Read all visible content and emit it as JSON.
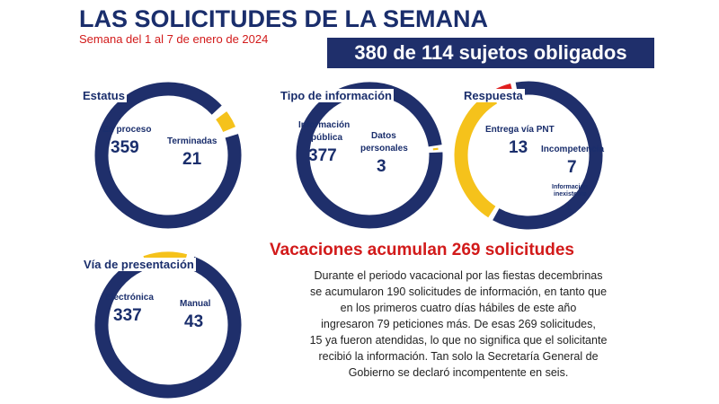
{
  "header": {
    "title": "LAS SOLICITUDES DE LA SEMANA",
    "subtitle": "Semana del 1 al 7 de enero de 2024",
    "banner": "380 de 114 sujetos obligados"
  },
  "colors": {
    "navy": "#1f2f6b",
    "yellow": "#f5c21b",
    "red": "#e01f1f"
  },
  "chart_data": [
    {
      "type": "pie",
      "title": "Estatus",
      "categories": [
        "En proceso",
        "Terminadas"
      ],
      "values": [
        359,
        21
      ],
      "colors": [
        "#1f2f6b",
        "#f5c21b"
      ]
    },
    {
      "type": "pie",
      "title": "Tipo de información",
      "categories": [
        "Información pública",
        "Datos personales"
      ],
      "values": [
        377,
        3
      ],
      "colors": [
        "#1f2f6b",
        "#f5c21b"
      ]
    },
    {
      "type": "pie",
      "title": "Respuesta",
      "categories": [
        "Entrega vía PNT",
        "Incompetencia",
        "Información inexistente"
      ],
      "values": [
        13,
        7,
        1
      ],
      "colors": [
        "#1f2f6b",
        "#f5c21b",
        "#e01f1f"
      ]
    },
    {
      "type": "pie",
      "title": "Vía de presentación",
      "categories": [
        "Electrónica",
        "Manual"
      ],
      "values": [
        337,
        43
      ],
      "colors": [
        "#1f2f6b",
        "#f5c21b"
      ]
    }
  ],
  "labels": {
    "c1": {
      "a": "En proceso",
      "b": "Terminadas"
    },
    "c2": {
      "a1": "Información",
      "a2": "pública",
      "b1": "Datos",
      "b2": "personales"
    },
    "c3": {
      "a": "Entrega vía PNT",
      "b": "Incompetencia",
      "c1": "Información",
      "c2": "inexistente"
    },
    "c4": {
      "a": "Electrónica",
      "b": "Manual"
    }
  },
  "article": {
    "headline": "Vacaciones acumulan 269 solicitudes",
    "lines": [
      "Durante el periodo vacacional por las fiestas decembrinas",
      "se acumularon 190 solicitudes de información, en tanto que",
      "en los primeros cuatro días hábiles de este año",
      "ingresaron 79 peticiones más. De esas 269 solicitudes,",
      "15 ya fueron atendidas, lo que no significa que el solicitante",
      "recibió la información. Tan solo la Secretaría General de",
      "Gobierno se declaró incompentente en seis."
    ]
  }
}
